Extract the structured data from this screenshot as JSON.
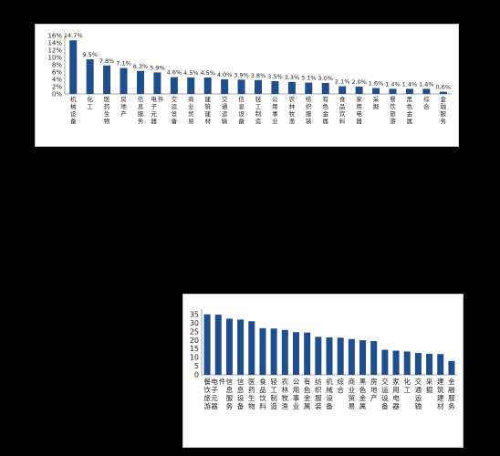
{
  "captions": {
    "fig1": "",
    "fig2": ""
  },
  "colors": {
    "bar": "#1f4e8c",
    "axis": "#8c8c8c"
  },
  "chart_data": [
    {
      "type": "bar",
      "categories": [
        "机械设备",
        "化工",
        "医药生物",
        "房地产",
        "信息服务",
        "电子元器件",
        "交运设备",
        "商业贸易",
        "建筑建材",
        "交通运输",
        "信息设备",
        "轻工制造",
        "公用事业",
        "农林牧渔",
        "纺织服装",
        "有色金属",
        "食品饮料",
        "家用电器",
        "采掘",
        "餐饮旅游",
        "黑色金属",
        "综合",
        "金融服务"
      ],
      "values": [
        14.7,
        9.5,
        7.8,
        7.1,
        6.3,
        5.9,
        4.6,
        4.5,
        4.5,
        4.0,
        3.9,
        3.8,
        3.5,
        3.3,
        3.1,
        3.0,
        2.1,
        2.0,
        1.6,
        1.4,
        1.4,
        1.4,
        0.6
      ],
      "data_labels": [
        "14.7%",
        "9.5%",
        "7.8%",
        "7.1%",
        "6.3%",
        "5.9%",
        "4.6%",
        "4.5%",
        "4.5%",
        "4.0%",
        "3.9%",
        "3.8%",
        "3.5%",
        "3.3%",
        "3.1%",
        "3.0%",
        "2.1%",
        "2.0%",
        "1.6%",
        "1.4%",
        "1.4%",
        "1.4%",
        "0.6%"
      ],
      "yticks": [
        "0%",
        "2%",
        "4%",
        "6%",
        "8%",
        "10%",
        "12%",
        "14%",
        "16%"
      ],
      "ylim": [
        0,
        16
      ]
    },
    {
      "type": "bar",
      "categories": [
        "餐饮旅游",
        "电子元器件",
        "信息服务",
        "信息设备",
        "医药生物",
        "食品饮料",
        "轻工制造",
        "农林牧渔",
        "公用事业",
        "有色金属",
        "纺织服装",
        "机械设备",
        "综合",
        "商业贸易",
        "黑色金属",
        "房地产",
        "交运设备",
        "家用电器",
        "化工",
        "交通运输",
        "采掘",
        "建筑建材",
        "金融服务"
      ],
      "values": [
        35,
        34.8,
        32.5,
        32,
        31,
        27,
        26.8,
        26,
        24.7,
        24.5,
        22,
        21.7,
        21.5,
        20.7,
        20,
        19.5,
        14.5,
        14,
        13.5,
        12.7,
        12.2,
        12,
        8
      ],
      "yticks": [
        "0",
        "5",
        "10",
        "15",
        "20",
        "25",
        "30",
        "35"
      ],
      "ylim": [
        0,
        38
      ]
    }
  ]
}
